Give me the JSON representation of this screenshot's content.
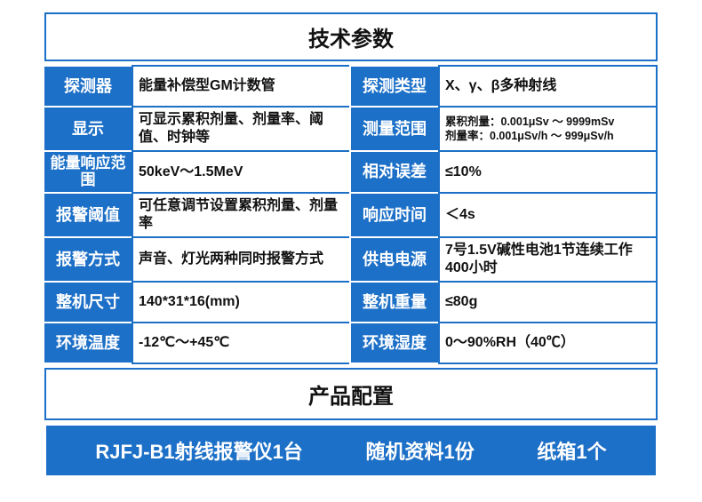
{
  "colors": {
    "brand": "#1d70c7",
    "text": "#111111",
    "white": "#ffffff"
  },
  "title": "技术参数",
  "rows": [
    {
      "l1": "探测器",
      "v1": "能量补偿型GM计数管",
      "l2": "探测类型",
      "v2": "X、γ、β多种射线"
    },
    {
      "l1": "显示",
      "v1": "可显示累积剂量、剂量率、阈值、时钟等",
      "l2": "测量范围",
      "v2": "累积剂量：0.001μSv ～ 9999mSv\n剂量率：0.001μSv/h ～ 999μSv/h",
      "v2small": true
    },
    {
      "l1": "能量响应范围",
      "l1two": true,
      "v1": "50keV～1.5MeV",
      "l2": "相对误差",
      "v2": "≤10%"
    },
    {
      "l1": "报警阈值",
      "v1": "可任意调节设置累积剂量、剂量率",
      "l2": "响应时间",
      "v2": "＜4s"
    },
    {
      "l1": "报警方式",
      "v1": "声音、灯光两种同时报警方式",
      "l2": "供电电源",
      "v2": "7号1.5V碱性电池1节连续工作400小时"
    },
    {
      "l1": "整机尺寸",
      "v1": "140*31*16(mm)",
      "l2": "整机重量",
      "v2": "≤80g"
    },
    {
      "l1": "环境温度",
      "v1": "-12℃～+45℃",
      "l2": "环境湿度",
      "v2": "0～90%RH（40℃）"
    }
  ],
  "configTitle": "产品配置",
  "configItems": [
    "RJFJ-B1射线报警仪1台",
    "随机资料1份",
    "纸箱1个"
  ]
}
